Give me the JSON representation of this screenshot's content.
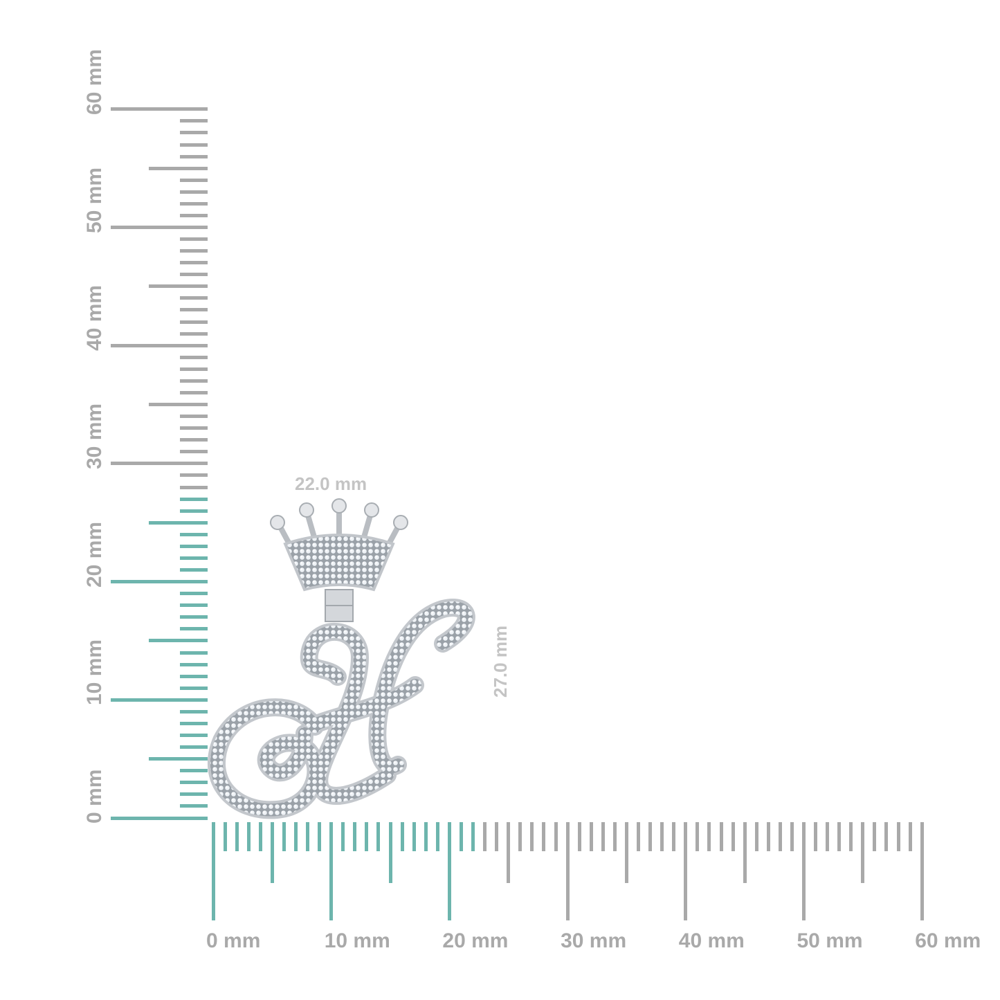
{
  "rulers": {
    "unit_label": "mm",
    "range_mm": [
      0,
      60
    ],
    "highlight_color": "#6db5ad",
    "base_color": "#a9a9a9",
    "vertical": {
      "labels": [
        "0 mm",
        "10 mm",
        "20 mm",
        "30 mm",
        "40 mm",
        "50 mm",
        "60 mm"
      ],
      "highlight_to_mm": 27
    },
    "horizontal": {
      "labels": [
        "0 mm",
        "10 mm",
        "20 mm",
        "30 mm",
        "40 mm",
        "50 mm",
        "60 mm"
      ],
      "highlight_to_mm": 22
    }
  },
  "product": {
    "name_icon": "crowned-letter-h-pendant",
    "width_label": "22.0 mm",
    "height_label": "27.0 mm",
    "metal_color": "#c9ccd0",
    "stone_color": "#eef2f6"
  }
}
